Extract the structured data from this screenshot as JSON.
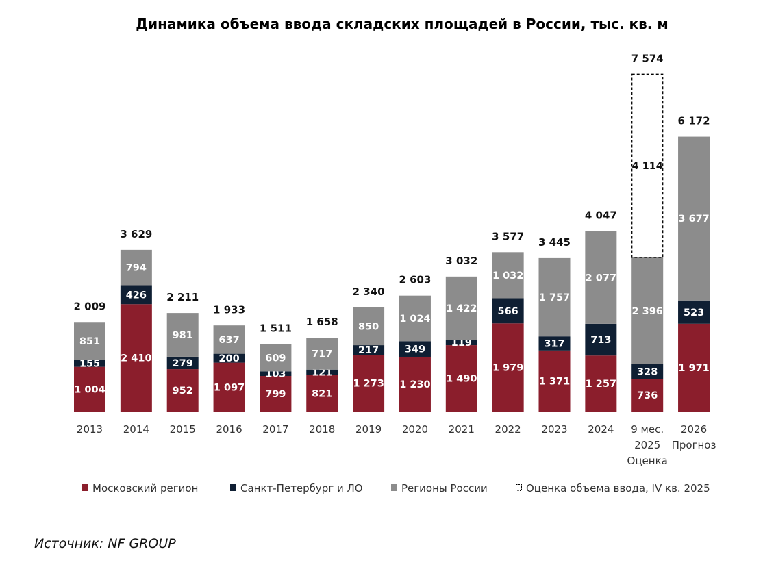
{
  "chart_data": {
    "type": "bar",
    "stacked": true,
    "title": "Динамика объема ввода складских площадей в России, тыс. кв. м",
    "categories": [
      [
        "2013"
      ],
      [
        "2014"
      ],
      [
        "2015"
      ],
      [
        "2016"
      ],
      [
        "2017"
      ],
      [
        "2018"
      ],
      [
        "2019"
      ],
      [
        "2020"
      ],
      [
        "2021"
      ],
      [
        "2022"
      ],
      [
        "2023"
      ],
      [
        "2024"
      ],
      [
        "9 мес.",
        "2025",
        "Оценка"
      ],
      [
        "2026",
        "Прогноз"
      ]
    ],
    "series": [
      {
        "name": "Московский регион",
        "color": "#8B1E2C",
        "values": [
          1004,
          2410,
          952,
          1097,
          799,
          821,
          1273,
          1230,
          1490,
          1979,
          1371,
          1257,
          736,
          1971
        ],
        "labels": [
          "1 004",
          "2 410",
          "952",
          "1 097",
          "799",
          "821",
          "1 273",
          "1 230",
          "1 490",
          "1 979",
          "1 371",
          "1 257",
          "736",
          "1 971"
        ]
      },
      {
        "name": "Санкт-Петербург и ЛО",
        "color": "#0F1F33",
        "values": [
          155,
          426,
          279,
          200,
          103,
          121,
          217,
          349,
          119,
          566,
          317,
          713,
          328,
          523
        ],
        "labels": [
          "155",
          "426",
          "279",
          "200",
          "103",
          "121",
          "217",
          "349",
          "119",
          "566",
          "317",
          "713",
          "328",
          "523"
        ]
      },
      {
        "name": "Регионы России",
        "color": "#8C8C8C",
        "values": [
          851,
          794,
          981,
          637,
          609,
          717,
          850,
          1024,
          1422,
          1032,
          1757,
          2077,
          2396,
          3677
        ],
        "labels": [
          "851",
          "794",
          "981",
          "637",
          "609",
          "717",
          "850",
          "1 024",
          "1 422",
          "1 032",
          "1 757",
          "2 077",
          "2 396",
          "3 677"
        ]
      },
      {
        "name": "Оценка объема ввода, IV кв. 2025",
        "color": "#000000",
        "dashed": true,
        "values": [
          null,
          null,
          null,
          null,
          null,
          null,
          null,
          null,
          null,
          null,
          null,
          null,
          4114,
          null
        ],
        "labels": [
          "",
          "",
          "",
          "",
          "",
          "",
          "",
          "",
          "",
          "",
          "",
          "",
          "4 114",
          ""
        ]
      }
    ],
    "totals": [
      2009,
      3629,
      2211,
      1933,
      1511,
      1658,
      2340,
      2603,
      3032,
      3577,
      3445,
      4047,
      7574,
      6172
    ],
    "total_labels": [
      "2 009",
      "3 629",
      "2 211",
      "1 933",
      "1 511",
      "1 658",
      "2 340",
      "2 603",
      "3 032",
      "3 577",
      "3 445",
      "4 047",
      "7 574",
      "6 172"
    ],
    "ylim": [
      0,
      8000
    ],
    "xlabel": "",
    "ylabel": "",
    "grid": false,
    "legend_position": "bottom"
  },
  "source": "Источник: NF GROUP"
}
